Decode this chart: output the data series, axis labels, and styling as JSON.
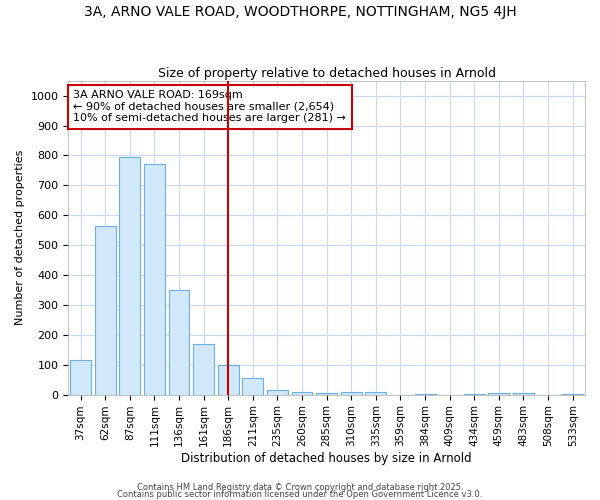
{
  "title1": "3A, ARNO VALE ROAD, WOODTHORPE, NOTTINGHAM, NG5 4JH",
  "title2": "Size of property relative to detached houses in Arnold",
  "xlabel": "Distribution of detached houses by size in Arnold",
  "ylabel": "Number of detached properties",
  "categories": [
    "37sqm",
    "62sqm",
    "87sqm",
    "111sqm",
    "136sqm",
    "161sqm",
    "186sqm",
    "211sqm",
    "235sqm",
    "260sqm",
    "285sqm",
    "310sqm",
    "335sqm",
    "359sqm",
    "384sqm",
    "409sqm",
    "434sqm",
    "459sqm",
    "483sqm",
    "508sqm",
    "533sqm"
  ],
  "values": [
    115,
    565,
    795,
    770,
    350,
    170,
    100,
    55,
    15,
    10,
    5,
    8,
    8,
    0,
    3,
    0,
    3,
    5,
    5,
    0,
    3
  ],
  "bar_color": "#d0e8fa",
  "bar_edge_color": "#6ab0e0",
  "vline_x": 6.0,
  "vline_color": "#cc0000",
  "annotation_text": "3A ARNO VALE ROAD: 169sqm\n← 90% of detached houses are smaller (2,654)\n10% of semi-detached houses are larger (281) →",
  "annotation_box_color": "#ffffff",
  "annotation_box_edge": "#cc0000",
  "ylim": [
    0,
    1050
  ],
  "yticks": [
    0,
    100,
    200,
    300,
    400,
    500,
    600,
    700,
    800,
    900,
    1000
  ],
  "footer1": "Contains HM Land Registry data © Crown copyright and database right 2025.",
  "footer2": "Contains public sector information licensed under the Open Government Licence v3.0.",
  "background_color": "#ffffff",
  "grid_color": "#c8d8f0"
}
